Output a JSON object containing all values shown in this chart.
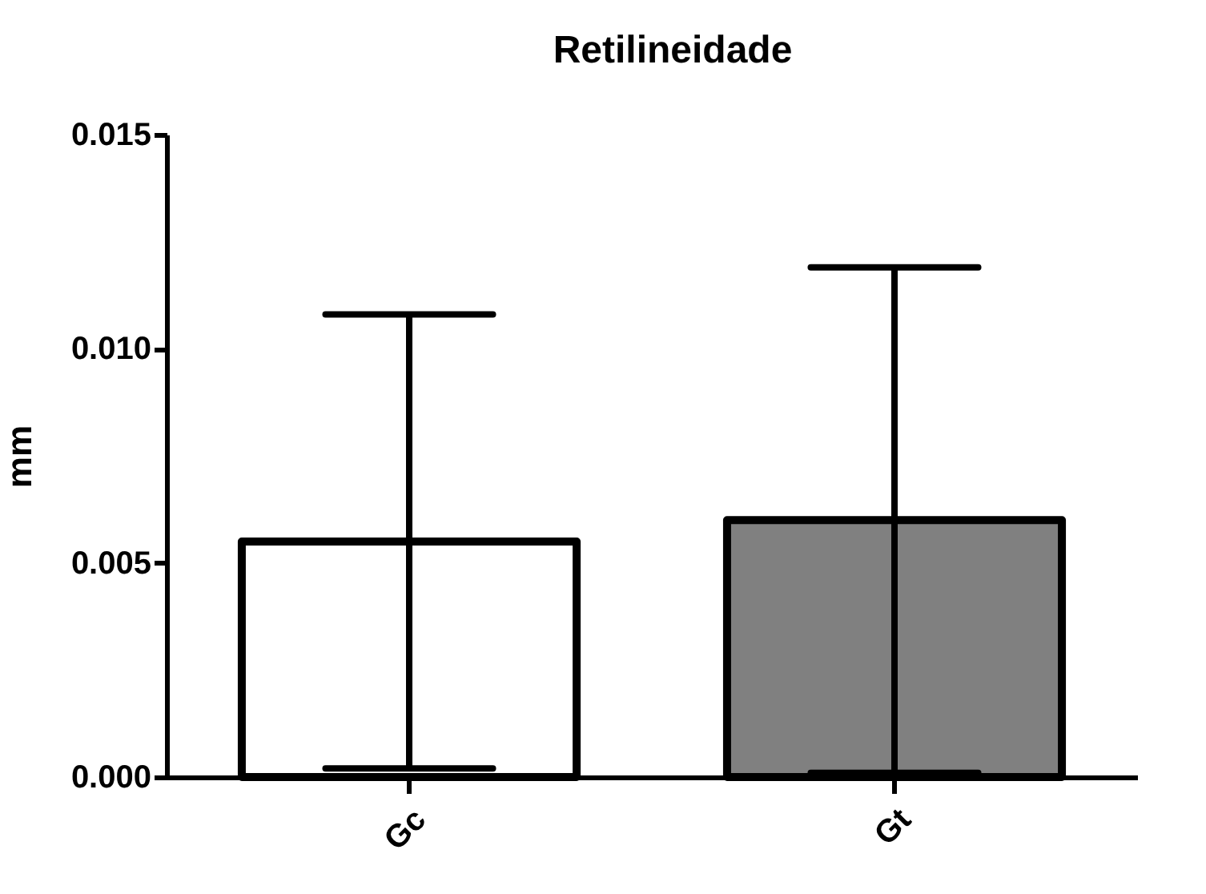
{
  "chart_data": {
    "type": "bar",
    "title": "Retilineidade",
    "ylabel": "mm",
    "categories": [
      "Gc",
      "Gt"
    ],
    "values": [
      0.0055,
      0.006
    ],
    "errors": [
      0.0053,
      0.0059
    ],
    "colors": [
      "#ffffff",
      "#808080"
    ],
    "ylim": [
      0,
      0.015
    ],
    "yticks": [
      {
        "value": 0,
        "label": "0.000"
      },
      {
        "value": 0.005,
        "label": "0.005"
      },
      {
        "value": 0.01,
        "label": "0.010"
      },
      {
        "value": 0.015,
        "label": "0.015"
      }
    ],
    "grid": false
  }
}
